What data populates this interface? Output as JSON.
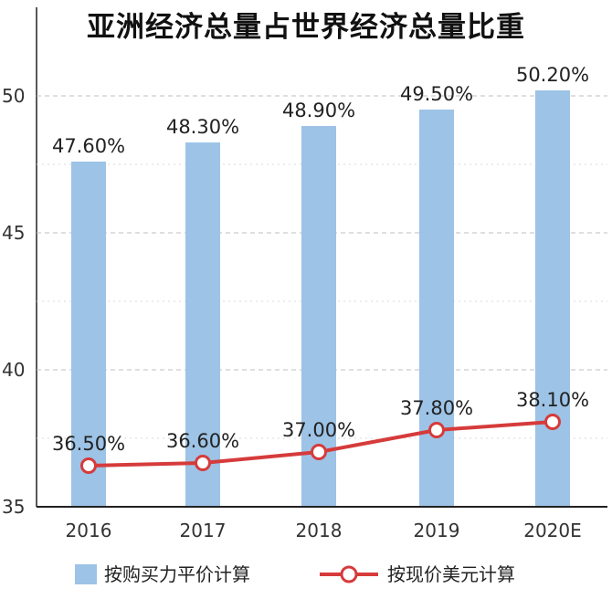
{
  "chart_data": {
    "type": "bar",
    "title": "亚洲经济总量占世界经济总量比重",
    "categories": [
      "2016",
      "2017",
      "2018",
      "2019",
      "2020E"
    ],
    "ylim": [
      35,
      52
    ],
    "yticks": [
      35,
      40,
      45,
      50
    ],
    "grid": "horizontal dashed",
    "legend_position": "bottom",
    "colors": {
      "bar": "#9dc3e6",
      "line": "#d63b3b",
      "axis": "#222222",
      "grid": "#bfbfbf"
    },
    "series": [
      {
        "name": "按购买力平价计算",
        "type": "bar",
        "values": [
          47.6,
          48.3,
          48.9,
          49.5,
          50.2
        ],
        "labels": [
          "47.60%",
          "48.30%",
          "48.90%",
          "49.50%",
          "50.20%"
        ]
      },
      {
        "name": "按现价美元计算",
        "type": "line",
        "values": [
          36.5,
          36.6,
          37.0,
          37.8,
          38.1
        ],
        "labels": [
          "36.50%",
          "36.60%",
          "37.00%",
          "37.80%",
          "38.10%"
        ]
      }
    ]
  }
}
